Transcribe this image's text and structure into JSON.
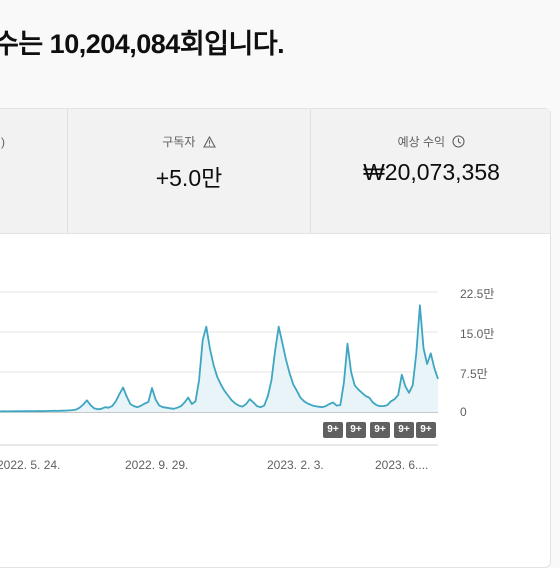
{
  "headline": "수는 10,204,084회입니다.",
  "metrics": {
    "partial_label": ")",
    "subscribers": {
      "label": "구독자",
      "value": "+5.0만",
      "icon": "warning-icon"
    },
    "revenue": {
      "label": "예상 수익",
      "value": "₩20,073,358",
      "icon": "clock-icon"
    }
  },
  "chart_data": {
    "type": "area",
    "yticks": [
      "22.5만",
      "15.0만",
      "7.5만",
      "0"
    ],
    "ylim": [
      0,
      225000
    ],
    "xticks": [
      "2022. 5. 24.",
      "2022. 9. 29.",
      "2023. 2. 3.",
      "2023. 6...."
    ],
    "grid": true,
    "series": [
      {
        "color": "#3ea6c1",
        "values": [
          1200,
          1300,
          1200,
          1400,
          1300,
          1500,
          1400,
          1600,
          1500,
          1700,
          1600,
          1800,
          1700,
          1900,
          2000,
          2200,
          2100,
          2400,
          2600,
          3000,
          3500,
          4500,
          8000,
          14000,
          22000,
          13000,
          7000,
          5000,
          6000,
          9000,
          8000,
          11000,
          20000,
          34000,
          46000,
          29000,
          15000,
          11000,
          9000,
          12000,
          16000,
          19000,
          45000,
          23000,
          12000,
          9000,
          8000,
          7000,
          6000,
          8000,
          11000,
          18000,
          27000,
          15000,
          20000,
          60000,
          135000,
          160000,
          118000,
          88000,
          66000,
          52000,
          40000,
          31000,
          22000,
          16000,
          12000,
          10000,
          15000,
          24000,
          18000,
          11000,
          9000,
          12000,
          30000,
          60000,
          115000,
          160000,
          130000,
          98000,
          73000,
          52000,
          40000,
          27000,
          20000,
          16000,
          13000,
          11000,
          10000,
          9000,
          11000,
          15000,
          18000,
          12000,
          13000,
          55000,
          128000,
          75000,
          50000,
          42000,
          36000,
          30000,
          27000,
          18000,
          13000,
          11000,
          11000,
          13000,
          20000,
          24000,
          32000,
          70000,
          48000,
          36000,
          50000,
          110000,
          200000,
          120000,
          90000,
          110000,
          82000,
          62000
        ]
      }
    ],
    "badges": [
      "9+",
      "9+",
      "9+",
      "9+",
      "9+"
    ]
  }
}
